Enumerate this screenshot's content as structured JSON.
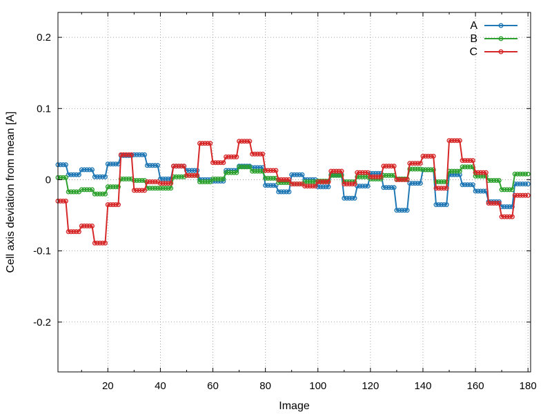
{
  "chart_data": {
    "type": "line",
    "xlabel": "Image",
    "ylabel": "Cell axis deviation from mean [A]",
    "xlim": [
      1,
      181
    ],
    "ylim": [
      -0.27,
      0.235
    ],
    "x_ticks": [
      20,
      40,
      60,
      80,
      100,
      120,
      140,
      160,
      180
    ],
    "y_ticks": [
      -0.2,
      -0.1,
      0,
      0.1,
      0.2
    ],
    "x_tick_labels": [
      "20",
      "40",
      "60",
      "80",
      "100",
      "120",
      "140",
      "160",
      "180"
    ],
    "y_tick_labels": [
      "-0.2",
      "-0.1",
      "0",
      "0.1",
      "0.2"
    ],
    "grid": true,
    "grid_style": "dotted",
    "legend_position": "top-right",
    "x": [
      1,
      2,
      3,
      4,
      5,
      6,
      7,
      8,
      9,
      10,
      11,
      12,
      13,
      14,
      15,
      16,
      17,
      18,
      19,
      20,
      21,
      22,
      23,
      24,
      25,
      26,
      27,
      28,
      29,
      30,
      31,
      32,
      33,
      34,
      35,
      36,
      37,
      38,
      39,
      40,
      41,
      42,
      43,
      44,
      45,
      46,
      47,
      48,
      49,
      50,
      51,
      52,
      53,
      54,
      55,
      56,
      57,
      58,
      59,
      60,
      61,
      62,
      63,
      64,
      65,
      66,
      67,
      68,
      69,
      70,
      71,
      72,
      73,
      74,
      75,
      76,
      77,
      78,
      79,
      80,
      81,
      82,
      83,
      84,
      85,
      86,
      87,
      88,
      89,
      90,
      91,
      92,
      93,
      94,
      95,
      96,
      97,
      98,
      99,
      100,
      101,
      102,
      103,
      104,
      105,
      106,
      107,
      108,
      109,
      110,
      111,
      112,
      113,
      114,
      115,
      116,
      117,
      118,
      119,
      120,
      121,
      122,
      123,
      124,
      125,
      126,
      127,
      128,
      129,
      130,
      131,
      132,
      133,
      134,
      135,
      136,
      137,
      138,
      139,
      140,
      141,
      142,
      143,
      144,
      145,
      146,
      147,
      148,
      149,
      150,
      151,
      152,
      153,
      154,
      155,
      156,
      157,
      158,
      159,
      160,
      161,
      162,
      163,
      164,
      165,
      166,
      167,
      168,
      169,
      170,
      171,
      172,
      173,
      174,
      175,
      176,
      177,
      178,
      179,
      180
    ],
    "series": [
      {
        "name": "A",
        "color": "#1f77b4",
        "steps": [
          [
            1,
            4,
            0.021
          ],
          [
            5,
            9,
            0.007
          ],
          [
            10,
            14,
            0.014
          ],
          [
            15,
            19,
            0.004
          ],
          [
            20,
            24,
            0.022
          ],
          [
            25,
            29,
            0.034
          ],
          [
            30,
            34,
            0.035
          ],
          [
            35,
            39,
            0.02
          ],
          [
            40,
            44,
            0.001
          ],
          [
            45,
            49,
            0.019
          ],
          [
            50,
            54,
            0.013
          ],
          [
            55,
            59,
            0.0
          ],
          [
            60,
            64,
            -0.002
          ],
          [
            65,
            69,
            0.013
          ],
          [
            70,
            74,
            0.019
          ],
          [
            75,
            79,
            0.017
          ],
          [
            80,
            84,
            -0.008
          ],
          [
            85,
            89,
            -0.017
          ],
          [
            90,
            94,
            0.007
          ],
          [
            95,
            99,
            0.0
          ],
          [
            100,
            104,
            -0.01
          ],
          [
            105,
            109,
            0.007
          ],
          [
            110,
            114,
            -0.026
          ],
          [
            115,
            119,
            -0.009
          ],
          [
            120,
            124,
            0.009
          ],
          [
            125,
            129,
            -0.011
          ],
          [
            130,
            134,
            -0.043
          ],
          [
            135,
            139,
            -0.005
          ],
          [
            140,
            144,
            0.014
          ],
          [
            145,
            149,
            -0.035
          ],
          [
            150,
            154,
            0.007
          ],
          [
            155,
            159,
            -0.007
          ],
          [
            160,
            164,
            -0.016
          ],
          [
            165,
            169,
            -0.031
          ],
          [
            170,
            174,
            -0.038
          ],
          [
            175,
            180,
            -0.006
          ]
        ]
      },
      {
        "name": "B",
        "color": "#2ca02c",
        "steps": [
          [
            1,
            4,
            0.003
          ],
          [
            5,
            9,
            -0.017
          ],
          [
            10,
            14,
            -0.014
          ],
          [
            15,
            19,
            -0.02
          ],
          [
            20,
            24,
            -0.01
          ],
          [
            25,
            29,
            0.001
          ],
          [
            30,
            34,
            -0.001
          ],
          [
            35,
            39,
            -0.012
          ],
          [
            40,
            44,
            -0.012
          ],
          [
            45,
            49,
            0.004
          ],
          [
            50,
            54,
            0.006
          ],
          [
            55,
            59,
            -0.003
          ],
          [
            60,
            64,
            0.001
          ],
          [
            65,
            69,
            0.01
          ],
          [
            70,
            74,
            0.018
          ],
          [
            75,
            79,
            0.012
          ],
          [
            80,
            84,
            0.002
          ],
          [
            85,
            89,
            -0.004
          ],
          [
            90,
            94,
            -0.006
          ],
          [
            95,
            99,
            -0.003
          ],
          [
            100,
            104,
            -0.002
          ],
          [
            105,
            109,
            0.006
          ],
          [
            110,
            114,
            -0.003
          ],
          [
            115,
            119,
            0.004
          ],
          [
            120,
            124,
            0.001
          ],
          [
            125,
            129,
            0.006
          ],
          [
            130,
            134,
            0.001
          ],
          [
            135,
            139,
            0.015
          ],
          [
            140,
            144,
            0.014
          ],
          [
            145,
            149,
            -0.003
          ],
          [
            150,
            154,
            0.012
          ],
          [
            155,
            159,
            0.018
          ],
          [
            160,
            164,
            0.005
          ],
          [
            165,
            169,
            -0.001
          ],
          [
            170,
            174,
            -0.014
          ],
          [
            175,
            180,
            0.008
          ]
        ]
      },
      {
        "name": "C",
        "color": "#d62728",
        "steps": [
          [
            1,
            4,
            -0.03
          ],
          [
            5,
            9,
            -0.073
          ],
          [
            10,
            14,
            -0.065
          ],
          [
            15,
            19,
            -0.089
          ],
          [
            20,
            24,
            -0.035
          ],
          [
            25,
            29,
            0.035
          ],
          [
            30,
            34,
            -0.015
          ],
          [
            35,
            39,
            -0.003
          ],
          [
            40,
            44,
            -0.005
          ],
          [
            45,
            49,
            0.019
          ],
          [
            50,
            54,
            0.006
          ],
          [
            55,
            59,
            0.051
          ],
          [
            60,
            64,
            0.024
          ],
          [
            65,
            69,
            0.032
          ],
          [
            70,
            74,
            0.054
          ],
          [
            75,
            79,
            0.036
          ],
          [
            80,
            84,
            0.013
          ],
          [
            85,
            89,
            0.0
          ],
          [
            90,
            94,
            -0.006
          ],
          [
            95,
            99,
            -0.009
          ],
          [
            100,
            104,
            -0.003
          ],
          [
            105,
            109,
            0.012
          ],
          [
            110,
            114,
            -0.006
          ],
          [
            115,
            119,
            0.01
          ],
          [
            120,
            124,
            0.004
          ],
          [
            125,
            129,
            0.019
          ],
          [
            130,
            134,
            0.0
          ],
          [
            135,
            139,
            0.023
          ],
          [
            140,
            144,
            0.033
          ],
          [
            145,
            149,
            -0.012
          ],
          [
            150,
            154,
            0.055
          ],
          [
            155,
            159,
            0.027
          ],
          [
            160,
            164,
            0.01
          ],
          [
            165,
            169,
            -0.033
          ],
          [
            170,
            174,
            -0.052
          ],
          [
            175,
            180,
            -0.022
          ]
        ]
      }
    ]
  }
}
